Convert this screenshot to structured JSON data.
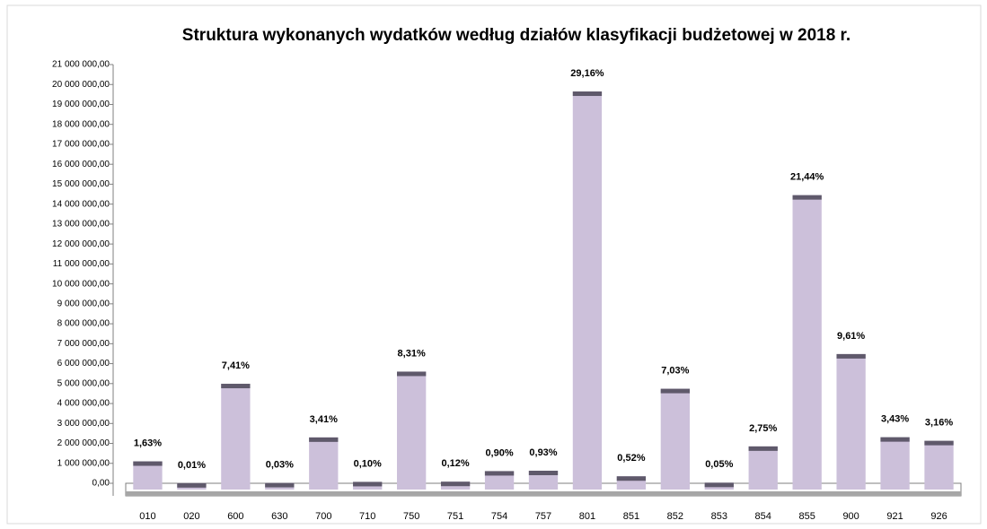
{
  "chart_data": {
    "type": "bar",
    "title": "Struktura wykonanych wydatków według działów klasyfikacji budżetowej w 2018 r.",
    "categories": [
      "010",
      "020",
      "600",
      "630",
      "700",
      "710",
      "750",
      "751",
      "754",
      "757",
      "801",
      "851",
      "852",
      "853",
      "854",
      "855",
      "900",
      "921",
      "926"
    ],
    "values": [
      1100000,
      7000,
      4990000,
      20000,
      2300000,
      70000,
      5600000,
      80000,
      610000,
      630000,
      19650000,
      350000,
      4740000,
      30000,
      1850000,
      14450000,
      6480000,
      2310000,
      2130000
    ],
    "shares": [
      1.63,
      0.01,
      7.41,
      0.03,
      3.41,
      0.1,
      8.31,
      0.12,
      0.9,
      0.93,
      29.16,
      0.52,
      7.03,
      0.05,
      2.75,
      21.44,
      9.61,
      3.43,
      3.16
    ],
    "share_labels": [
      "1,63%",
      "0,01%",
      "7,41%",
      "0,03%",
      "3,41%",
      "0,10%",
      "8,31%",
      "0,12%",
      "0,90%",
      "0,93%",
      "29,16%",
      "0,52%",
      "7,03%",
      "0,05%",
      "2,75%",
      "21,44%",
      "9,61%",
      "3,43%",
      "3,16%"
    ],
    "color": "#ccc0da",
    "cap_color": "#5f596b",
    "ylim": [
      0,
      21000000
    ],
    "yticks": [
      {
        "value": 0,
        "label": "0,00"
      },
      {
        "value": 1000000,
        "label": "1 000 000,00"
      },
      {
        "value": 2000000,
        "label": "2 000 000,00"
      },
      {
        "value": 3000000,
        "label": "3 000 000,00"
      },
      {
        "value": 4000000,
        "label": "4 000 000,00"
      },
      {
        "value": 5000000,
        "label": "5 000 000,00"
      },
      {
        "value": 6000000,
        "label": "6 000 000,00"
      },
      {
        "value": 7000000,
        "label": "7 000 000,00"
      },
      {
        "value": 8000000,
        "label": "8 000 000,00"
      },
      {
        "value": 9000000,
        "label": "9 000 000,00"
      },
      {
        "value": 10000000,
        "label": "10 000 000,00"
      },
      {
        "value": 11000000,
        "label": "11 000 000,00"
      },
      {
        "value": 12000000,
        "label": "12 000 000,00"
      },
      {
        "value": 13000000,
        "label": "13 000 000,00"
      },
      {
        "value": 14000000,
        "label": "14 000 000,00"
      },
      {
        "value": 15000000,
        "label": "15 000 000,00"
      },
      {
        "value": 16000000,
        "label": "16 000 000,00"
      },
      {
        "value": 17000000,
        "label": "17 000 000,00"
      },
      {
        "value": 18000000,
        "label": "18 000 000,00"
      },
      {
        "value": 19000000,
        "label": "19 000 000,00"
      },
      {
        "value": 20000000,
        "label": "20 000 000,00"
      },
      {
        "value": 21000000,
        "label": "21 000 000,00"
      }
    ],
    "grid": false
  }
}
